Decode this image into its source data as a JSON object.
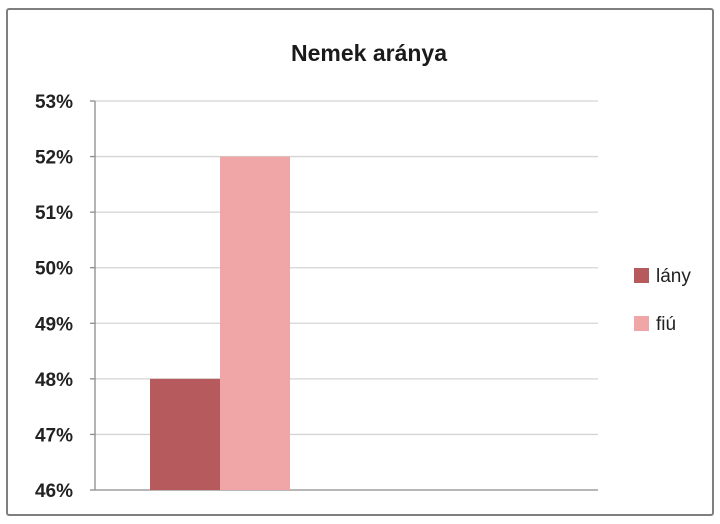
{
  "chart_data": {
    "type": "bar",
    "title": "Nemek aránya",
    "xlabel": "",
    "ylabel": "",
    "categories": [
      ""
    ],
    "series": [
      {
        "name": "lány",
        "values": [
          0.48
        ],
        "color": "#b65a5e"
      },
      {
        "name": "fiú",
        "values": [
          0.52
        ],
        "color": "#f0a6a6"
      }
    ],
    "ylim": [
      0.46,
      0.53
    ],
    "yticks": [
      0.53,
      0.52,
      0.51,
      0.5,
      0.49,
      0.48,
      0.47,
      0.46
    ],
    "ytick_labels": [
      "53%",
      "52%",
      "51%",
      "50%",
      "49%",
      "48%",
      "47%",
      "46%"
    ],
    "grid": true,
    "legend_position": "right"
  }
}
